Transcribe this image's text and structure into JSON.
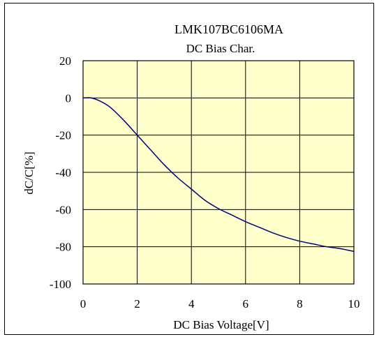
{
  "chart_data": {
    "type": "line",
    "title": "LMK107BC6106MA",
    "subtitle": "DC Bias Char.",
    "xlabel": "DC Bias Voltage[V]",
    "ylabel": "dC/C[%]",
    "xlim": [
      0,
      10
    ],
    "ylim": [
      -100,
      20
    ],
    "x_ticks": [
      "0",
      "2",
      "4",
      "6",
      "8",
      "10"
    ],
    "y_ticks": [
      "20",
      "0",
      "-20",
      "-40",
      "-60",
      "-80",
      "-100"
    ],
    "x_tick_values": [
      0,
      2,
      4,
      6,
      8,
      10
    ],
    "y_tick_values": [
      20,
      0,
      -20,
      -40,
      -60,
      -80,
      -100
    ],
    "grid": true,
    "plot_background": "#ffffcc",
    "line_color": "#000080",
    "series": [
      {
        "x": [
          0,
          0.3,
          0.6,
          1.0,
          1.5,
          2.0,
          2.5,
          3.0,
          3.5,
          4.0,
          4.5,
          5.0,
          5.5,
          6.0,
          6.5,
          7.0,
          7.5,
          8.0,
          8.5,
          9.0,
          9.5,
          10.0
        ],
        "y": [
          0,
          0,
          -1.5,
          -5,
          -12,
          -20,
          -28,
          -36,
          -43,
          -49,
          -55,
          -59.5,
          -63,
          -66.5,
          -69.5,
          -72.5,
          -75,
          -77,
          -78.5,
          -80,
          -81,
          -82.5
        ]
      }
    ]
  }
}
